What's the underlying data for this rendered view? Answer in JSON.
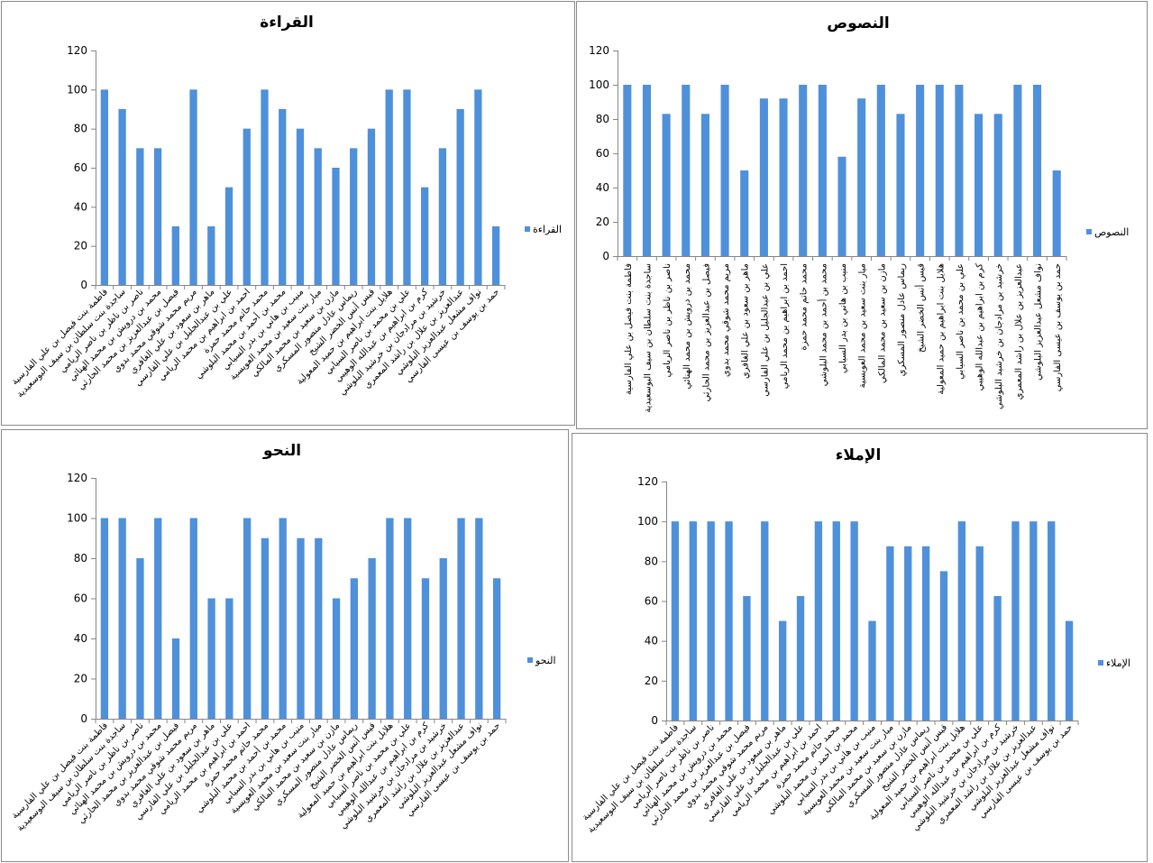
{
  "bar_color": "#4F90DA",
  "chart_data": [
    {
      "type": "bar",
      "title": "القراءة",
      "legend": "القراءة",
      "legend_position": "right",
      "ylim": [
        0,
        120
      ],
      "yticks": [
        "0",
        "20",
        "40",
        "60",
        "80",
        "100",
        "120"
      ],
      "label_rotation": "diagonal",
      "categories": [
        "فاطمة بنت فيصل بن علي الفارسية",
        "ساجدة بنت سلطان بن سيف البوسعيدية",
        "ناصر بن ناظر بن ناصر الريامي",
        "محمد بن درويش بن محمد الهنائي",
        "فيصل بن عبدالعزيز بن محمد الحارثي",
        "مريم محمد شوقي محمد بدوي",
        "ماهر بن سعود بن علي الغافري",
        "علي بن عبدالجليل بن علي الفارسي",
        "احمد بن ابراهيم بن محمد الريامي",
        "محمد حاتم محمد حمزة",
        "محمد بن أحمد بن محمد البلوشي",
        "منيب بن هاني بن بدر السيابي",
        "ميار بنت سعيد بن محمد العويسية",
        "مازن بن سعيد بن محمد المالكي",
        "ريماس عادل منصور المسكري",
        "قيس أنس الخضر الشيخ",
        "هلايل بنت ابراهيم بن حميد المعولية",
        "علي بن محمد بن ناصر السيابي",
        "كرم بن ابراهيم بن عبدالله الوهيبي",
        "خرشيد بن مرادجان بن خرشيد البلوشي",
        "عبدالعزيز بن علال بن راشد المعمري",
        "نواف مشعل عبدالعزيز البلوشي",
        "حمد بن يوسف بن عيسى الفارسي"
      ],
      "values": [
        100,
        90,
        70,
        70,
        30,
        100,
        30,
        50,
        80,
        100,
        90,
        80,
        70,
        60,
        70,
        80,
        100,
        100,
        50,
        70,
        90,
        100,
        30
      ]
    },
    {
      "type": "bar",
      "title": "النصوص",
      "legend": "النصوص",
      "legend_position": "right",
      "ylim": [
        0,
        120
      ],
      "yticks": [
        "0",
        "20",
        "40",
        "60",
        "80",
        "100",
        "120"
      ],
      "label_rotation": "vertical",
      "categories": [
        "فاطمة بنت فيصل بن علي الفارسية",
        "ساجدة بنت سلطان بن سيف البوسعيدية",
        "ناصر بن ناظر بن ناصر الريامي",
        "محمد بن درويش بن محمد الهنائي",
        "فيصل بن عبدالعزيز بن محمد الحارثي",
        "مريم محمد شوقي محمد بدوي",
        "ماهر بن سعود بن علي الغافري",
        "علي بن عبدالجليل بن علي الفارسي",
        "احمد بن ابراهيم بن محمد الريامي",
        "محمد حاتم محمد حمزة",
        "محمد بن أحمد بن محمد البلوشي",
        "منيب بن هاني بن بدر السيابي",
        "ميار بنت سعيد بن محمد العويسية",
        "مازن بن سعيد بن محمد المالكي",
        "ريماس عادل منصور المسكري",
        "قيس أنس الخضر الشيخ",
        "هلايل بنت ابراهيم بن حميد المعولية",
        "علي بن محمد بن ناصر السيابي",
        "كرم بن ابراهيم بن عبدالله الوهيبي",
        "خرشيد بن مرادجان بن خرشيد البلوشي",
        "عبدالعزيز بن علال بن راشد المعمري",
        "نواف مشعل عبدالعزيز البلوشي",
        "حمد بن يوسف بن عيسى الفارسي"
      ],
      "values": [
        100,
        100,
        83,
        100,
        83,
        100,
        50,
        92,
        92,
        100,
        100,
        58,
        92,
        100,
        83,
        100,
        100,
        100,
        83,
        83,
        100,
        100,
        50
      ]
    },
    {
      "type": "bar",
      "title": "النحو",
      "legend": "النحو",
      "legend_position": "right",
      "ylim": [
        0,
        120
      ],
      "yticks": [
        "0",
        "20",
        "40",
        "60",
        "80",
        "100",
        "120"
      ],
      "label_rotation": "diagonal",
      "categories": [
        "فاطمة بنت فيصل بن علي الفارسية",
        "ساجدة بنت سلطان بن سيف البوسعيدية",
        "ناصر بن ناظر بن ناصر الريامي",
        "محمد بن درويش بن محمد الهنائي",
        "فيصل بن عبدالعزيز بن محمد الحارثي",
        "مريم محمد شوقي محمد بدوي",
        "ماهر بن سعود بن علي الغافري",
        "علي بن عبدالجليل بن علي الفارسي",
        "احمد بن ابراهيم بن محمد الريامي",
        "محمد حاتم محمد حمزة",
        "محمد بن أحمد بن محمد البلوشي",
        "منيب بن هاني بن بدر السيابي",
        "ميار بنت سعيد بن محمد العويسية",
        "مازن بن سعيد بن محمد المالكي",
        "ريماس عادل منصور المسكري",
        "قيس أنس الخضر الشيخ",
        "هلايل بنت ابراهيم بن حميد المعولية",
        "علي بن محمد بن ناصر السيابي",
        "كرم بن ابراهيم بن عبدالله الوهيبي",
        "خرشيد بن مرادجان بن خرشيد البلوشي",
        "عبدالعزيز بن علال بن راشد المعمري",
        "نواف مشعل عبدالعزيز البلوشي",
        "حمد بن يوسف بن عيسى الفارسي"
      ],
      "values": [
        100,
        100,
        80,
        100,
        40,
        100,
        60,
        60,
        100,
        90,
        100,
        90,
        90,
        60,
        70,
        80,
        100,
        100,
        70,
        80,
        100,
        100,
        70
      ]
    },
    {
      "type": "bar",
      "title": "الإملاء",
      "legend": "الإملاء",
      "legend_position": "right",
      "ylim": [
        0,
        120
      ],
      "yticks": [
        "0",
        "20",
        "40",
        "60",
        "80",
        "100",
        "120"
      ],
      "label_rotation": "diagonal",
      "categories": [
        "فاطمة بنت فيصل بن علي الفارسية",
        "ساجدة بنت سلطان بن سيف البوسعيدية",
        "ناصر بن ناظر بن ناصر الريامي",
        "محمد بن درويش بن محمد الهنائي",
        "فيصل بن عبدالعزيز بن محمد الحارثي",
        "مريم محمد شوقي محمد بدوي",
        "ماهر بن سعود بن علي الغافري",
        "علي بن عبدالجليل بن علي الفارسي",
        "احمد بن ابراهيم بن محمد الريامي",
        "محمد حاتم محمد حمزة",
        "محمد بن أحمد بن محمد البلوشي",
        "منيب بن هاني بن بدر السيابي",
        "ميار بنت سعيد بن محمد العويسية",
        "مازن بن سعيد بن محمد المالكي",
        "ريماس عادل منصور المسكري",
        "قيس أنس الخضر الشيخ",
        "هلايل بنت ابراهيم بن حميد المعولية",
        "علي بن محمد بن ناصر السيابي",
        "كرم بن ابراهيم بن عبدالله الوهيبي",
        "خرشيد بن مرادجان بن خرشيد البلوشي",
        "عبدالعزيز بن علال بن راشد المعمري",
        "نواف مشعل عبدالعزيز البلوشي",
        "حمد بن يوسف بن عيسى الفارسي"
      ],
      "values": [
        100,
        100,
        100,
        100,
        62.5,
        100,
        50,
        62.5,
        100,
        100,
        100,
        50,
        87.5,
        87.5,
        87.5,
        75,
        100,
        87.5,
        62.5,
        100,
        100,
        100,
        50
      ]
    }
  ]
}
